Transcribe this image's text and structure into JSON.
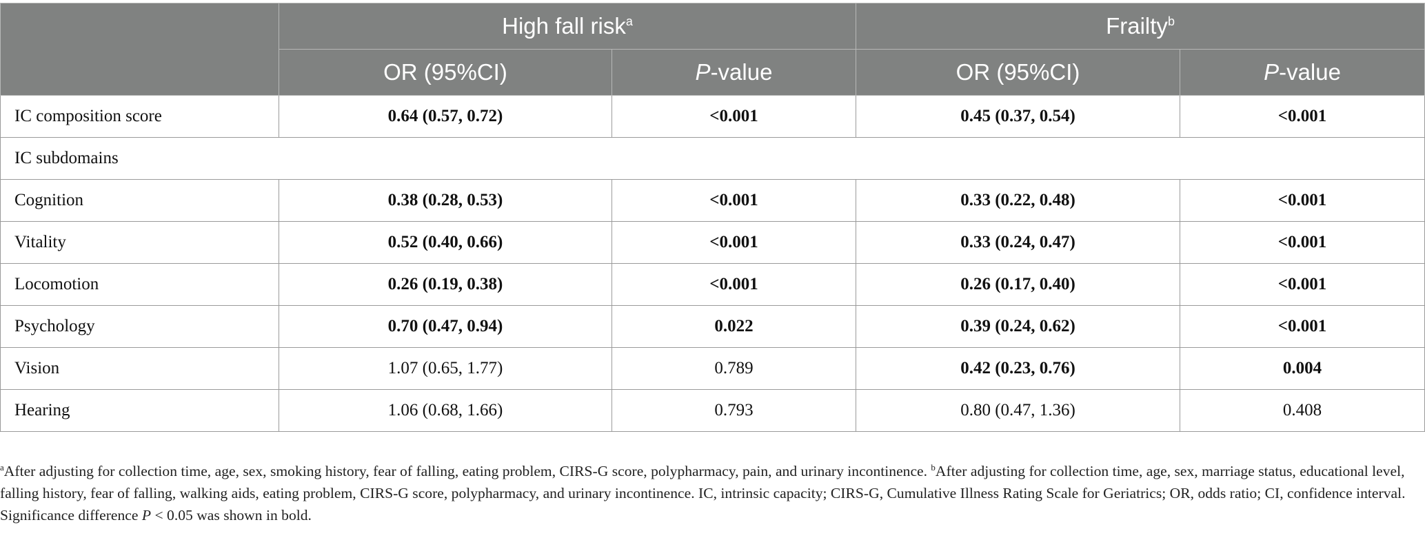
{
  "header": {
    "group1": {
      "title": "High fall risk",
      "sup": "a"
    },
    "group2": {
      "title": "Frailty",
      "sup": "b"
    },
    "or_label": "OR (95%CI)",
    "p_italic": "P",
    "p_rest": "-value"
  },
  "rows": {
    "r0": {
      "label": "IC composition score",
      "or1": "0.64 (0.57, 0.72)",
      "p1": "<0.001",
      "or2": "0.45 (0.37, 0.54)",
      "p2": "<0.001"
    },
    "section": "IC subdomains",
    "r1": {
      "label": "Cognition",
      "or1": "0.38 (0.28, 0.53)",
      "p1": "<0.001",
      "or2": "0.33 (0.22, 0.48)",
      "p2": "<0.001"
    },
    "r2": {
      "label": "Vitality",
      "or1": "0.52 (0.40, 0.66)",
      "p1": "<0.001",
      "or2": "0.33 (0.24, 0.47)",
      "p2": "<0.001"
    },
    "r3": {
      "label": "Locomotion",
      "or1": "0.26 (0.19, 0.38)",
      "p1": "<0.001",
      "or2": "0.26 (0.17, 0.40)",
      "p2": "<0.001"
    },
    "r4": {
      "label": "Psychology",
      "or1": "0.70 (0.47, 0.94)",
      "p1": "0.022",
      "or2": "0.39 (0.24, 0.62)",
      "p2": "<0.001"
    },
    "r5": {
      "label": "Vision",
      "or1": "1.07 (0.65, 1.77)",
      "p1": "0.789",
      "or2": "0.42 (0.23, 0.76)",
      "p2": "0.004"
    },
    "r6": {
      "label": "Hearing",
      "or1": "1.06 (0.68, 1.66)",
      "p1": "0.793",
      "or2": "0.80 (0.47, 1.36)",
      "p2": "0.408"
    }
  },
  "footnote": {
    "sup_a": "a",
    "text_a": "After adjusting for collection time, age, sex, smoking history, fear of falling, eating problem, CIRS-G score, polypharmacy, pain, and urinary incontinence. ",
    "sup_b": "b",
    "text_b": "After adjusting for collection time, age, sex, marriage status, educational level, falling history, fear of falling, walking aids, eating problem, CIRS-G score, polypharmacy, and urinary incontinence. IC, intrinsic capacity; CIRS-G, Cumulative Illness Rating Scale for Geriatrics; OR, odds ratio; CI, confidence interval. Significance difference ",
    "p_italic": "P",
    "text_end": " < 0.05 was shown in bold."
  }
}
